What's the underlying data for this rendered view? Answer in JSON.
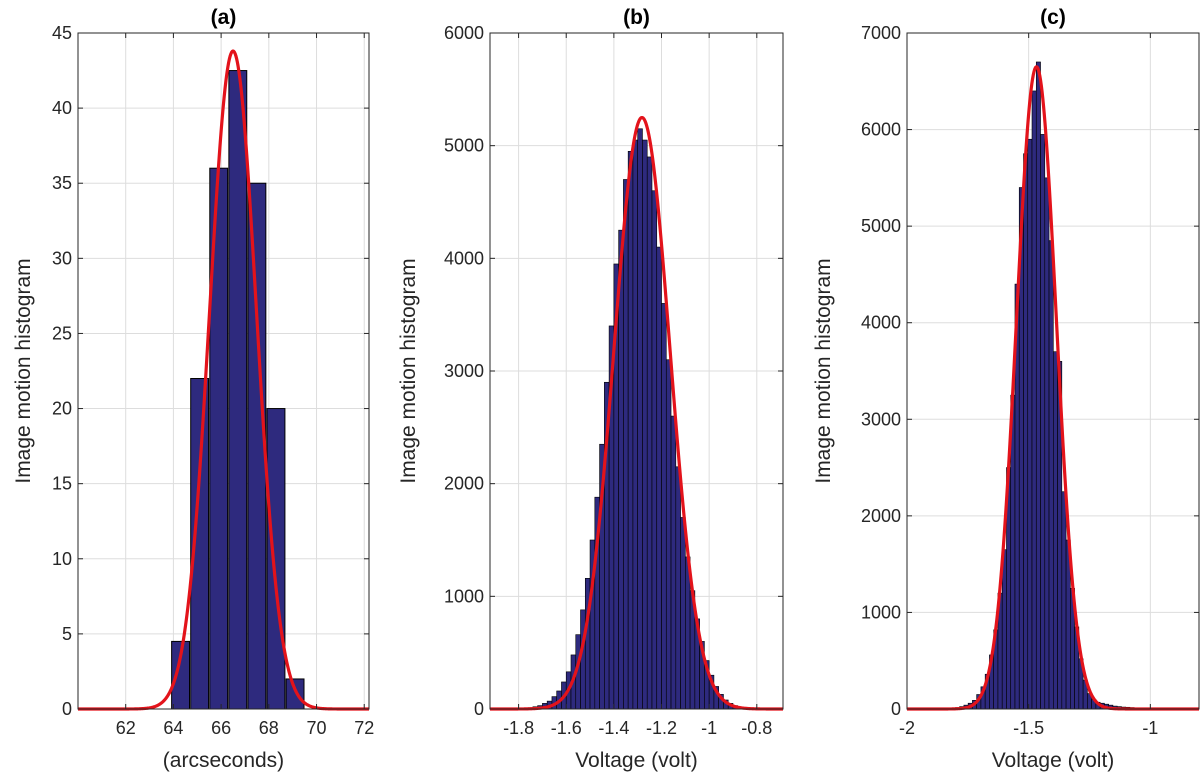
{
  "colors": {
    "bar_fill": "#2E2A7E",
    "bar_edge": "#000000",
    "fit_line": "#E3131B",
    "grid": "#DDDDDD",
    "axis": "#262626"
  },
  "chart_data": [
    {
      "type": "bar",
      "title": "(a)",
      "xlabel": "(arcseconds)",
      "ylabel": "Image motion histogram",
      "xlim": [
        60,
        72.2
      ],
      "ylim": [
        0,
        45
      ],
      "xticks": [
        62,
        64,
        66,
        68,
        70,
        72
      ],
      "xtick_labels": [
        "62",
        "64",
        "66",
        "68",
        "70",
        "72"
      ],
      "yticks": [
        0,
        5,
        10,
        15,
        20,
        25,
        30,
        35,
        40,
        45
      ],
      "ytick_labels": [
        "0",
        "5",
        "10",
        "15",
        "20",
        "25",
        "30",
        "35",
        "40",
        "45"
      ],
      "grid": true,
      "bar_width": 0.75,
      "bars": [
        {
          "x": 64.3,
          "y": 4.5
        },
        {
          "x": 65.1,
          "y": 22
        },
        {
          "x": 65.9,
          "y": 36
        },
        {
          "x": 66.7,
          "y": 42.5
        },
        {
          "x": 67.5,
          "y": 35
        },
        {
          "x": 68.3,
          "y": 20
        },
        {
          "x": 69.1,
          "y": 2
        }
      ],
      "fit": {
        "type": "gaussian",
        "mean": 66.5,
        "sigma": 0.98,
        "peak": 43.8
      }
    },
    {
      "type": "bar",
      "title": "(b)",
      "xlabel": "Voltage (volt)",
      "ylabel": "Image motion histogram",
      "xlim": [
        -1.92,
        -0.69
      ],
      "ylim": [
        0,
        6000
      ],
      "xticks": [
        -1.8,
        -1.6,
        -1.4,
        -1.2,
        -1.0,
        -0.8
      ],
      "xtick_labels": [
        "-1.8",
        "-1.6",
        "-1.4",
        "-1.2",
        "-1",
        "-0.8"
      ],
      "yticks": [
        0,
        1000,
        2000,
        3000,
        4000,
        5000,
        6000
      ],
      "ytick_labels": [
        "0",
        "1000",
        "2000",
        "3000",
        "4000",
        "5000",
        "6000"
      ],
      "grid": true,
      "bar_width": 0.02,
      "bars": [
        {
          "x": -1.79,
          "y": 5
        },
        {
          "x": -1.77,
          "y": 8
        },
        {
          "x": -1.75,
          "y": 12
        },
        {
          "x": -1.73,
          "y": 20
        },
        {
          "x": -1.71,
          "y": 30
        },
        {
          "x": -1.69,
          "y": 50
        },
        {
          "x": -1.67,
          "y": 70
        },
        {
          "x": -1.65,
          "y": 110
        },
        {
          "x": -1.63,
          "y": 160
        },
        {
          "x": -1.61,
          "y": 240
        },
        {
          "x": -1.59,
          "y": 330
        },
        {
          "x": -1.57,
          "y": 480
        },
        {
          "x": -1.55,
          "y": 660
        },
        {
          "x": -1.53,
          "y": 880
        },
        {
          "x": -1.51,
          "y": 1160
        },
        {
          "x": -1.49,
          "y": 1500
        },
        {
          "x": -1.47,
          "y": 1880
        },
        {
          "x": -1.45,
          "y": 2350
        },
        {
          "x": -1.43,
          "y": 2900
        },
        {
          "x": -1.41,
          "y": 3400
        },
        {
          "x": -1.39,
          "y": 3950
        },
        {
          "x": -1.37,
          "y": 4250
        },
        {
          "x": -1.35,
          "y": 4700
        },
        {
          "x": -1.33,
          "y": 4950
        },
        {
          "x": -1.31,
          "y": 5050
        },
        {
          "x": -1.29,
          "y": 5150
        },
        {
          "x": -1.27,
          "y": 5050
        },
        {
          "x": -1.25,
          "y": 4900
        },
        {
          "x": -1.23,
          "y": 4600
        },
        {
          "x": -1.21,
          "y": 4100
        },
        {
          "x": -1.19,
          "y": 3600
        },
        {
          "x": -1.17,
          "y": 3100
        },
        {
          "x": -1.15,
          "y": 2600
        },
        {
          "x": -1.13,
          "y": 2150
        },
        {
          "x": -1.11,
          "y": 1700
        },
        {
          "x": -1.09,
          "y": 1350
        },
        {
          "x": -1.07,
          "y": 1050
        },
        {
          "x": -1.05,
          "y": 800
        },
        {
          "x": -1.03,
          "y": 600
        },
        {
          "x": -1.01,
          "y": 430
        },
        {
          "x": -0.99,
          "y": 300
        },
        {
          "x": -0.97,
          "y": 200
        },
        {
          "x": -0.95,
          "y": 130
        },
        {
          "x": -0.93,
          "y": 80
        },
        {
          "x": -0.91,
          "y": 50
        },
        {
          "x": -0.89,
          "y": 30
        },
        {
          "x": -0.87,
          "y": 15
        },
        {
          "x": -0.85,
          "y": 8
        },
        {
          "x": -0.83,
          "y": 5
        },
        {
          "x": -0.81,
          "y": 3
        },
        {
          "x": -0.79,
          "y": 3
        },
        {
          "x": -0.77,
          "y": 2
        },
        {
          "x": -0.75,
          "y": 2
        },
        {
          "x": -0.73,
          "y": 1
        },
        {
          "x": -0.71,
          "y": 1
        }
      ],
      "fit": {
        "type": "gaussian",
        "mean": -1.282,
        "sigma": 0.118,
        "peak": 5250
      }
    },
    {
      "type": "bar",
      "title": "(c)",
      "xlabel": "Voltage (volt)",
      "ylabel": "Image motion histogram",
      "xlim": [
        -2.0,
        -0.8
      ],
      "ylim": [
        0,
        7000
      ],
      "xticks": [
        -2.0,
        -1.5,
        -1.0
      ],
      "xtick_labels": [
        "-2",
        "-1.5",
        "-1"
      ],
      "yticks": [
        0,
        1000,
        2000,
        3000,
        4000,
        5000,
        6000,
        7000
      ],
      "ytick_labels": [
        "0",
        "1000",
        "2000",
        "3000",
        "4000",
        "5000",
        "6000",
        "7000"
      ],
      "grid": true,
      "bar_width": 0.0175,
      "bars": [
        {
          "x": -1.8275,
          "y": 5
        },
        {
          "x": -1.81,
          "y": 10
        },
        {
          "x": -1.7925,
          "y": 15
        },
        {
          "x": -1.775,
          "y": 25
        },
        {
          "x": -1.7575,
          "y": 40
        },
        {
          "x": -1.74,
          "y": 60
        },
        {
          "x": -1.7225,
          "y": 90
        },
        {
          "x": -1.705,
          "y": 150
        },
        {
          "x": -1.6875,
          "y": 230
        },
        {
          "x": -1.67,
          "y": 360
        },
        {
          "x": -1.6525,
          "y": 560
        },
        {
          "x": -1.635,
          "y": 820
        },
        {
          "x": -1.6175,
          "y": 1200
        },
        {
          "x": -1.6,
          "y": 1650
        },
        {
          "x": -1.5825,
          "y": 2500
        },
        {
          "x": -1.565,
          "y": 3250
        },
        {
          "x": -1.5475,
          "y": 4400
        },
        {
          "x": -1.53,
          "y": 5400
        },
        {
          "x": -1.5125,
          "y": 5750
        },
        {
          "x": -1.495,
          "y": 5900
        },
        {
          "x": -1.4775,
          "y": 6400
        },
        {
          "x": -1.46,
          "y": 6700
        },
        {
          "x": -1.4425,
          "y": 5950
        },
        {
          "x": -1.425,
          "y": 5500
        },
        {
          "x": -1.4075,
          "y": 4850
        },
        {
          "x": -1.39,
          "y": 3700
        },
        {
          "x": -1.3725,
          "y": 3600
        },
        {
          "x": -1.355,
          "y": 2250
        },
        {
          "x": -1.3375,
          "y": 1750
        },
        {
          "x": -1.32,
          "y": 1250
        },
        {
          "x": -1.3025,
          "y": 850
        },
        {
          "x": -1.285,
          "y": 520
        },
        {
          "x": -1.2675,
          "y": 300
        },
        {
          "x": -1.25,
          "y": 160
        },
        {
          "x": -1.2325,
          "y": 100
        },
        {
          "x": -1.215,
          "y": 70
        },
        {
          "x": -1.1975,
          "y": 60
        },
        {
          "x": -1.18,
          "y": 50
        },
        {
          "x": -1.1625,
          "y": 40
        },
        {
          "x": -1.145,
          "y": 30
        },
        {
          "x": -1.1275,
          "y": 25
        },
        {
          "x": -1.11,
          "y": 20
        },
        {
          "x": -1.0925,
          "y": 18
        },
        {
          "x": -1.075,
          "y": 15
        },
        {
          "x": -1.0575,
          "y": 10
        },
        {
          "x": -1.04,
          "y": 8
        },
        {
          "x": -1.0225,
          "y": 5
        },
        {
          "x": -1.005,
          "y": 3
        }
      ],
      "fit": {
        "type": "gaussian",
        "mean": -1.468,
        "sigma": 0.082,
        "peak": 6650
      }
    }
  ]
}
